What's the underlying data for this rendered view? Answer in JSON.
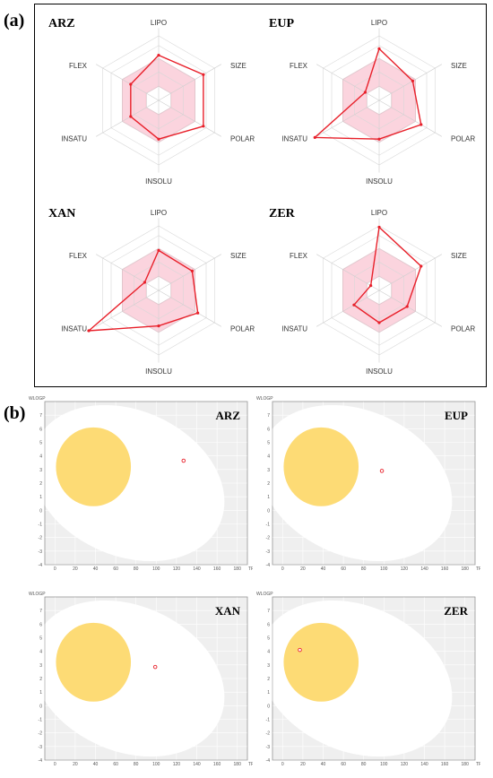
{
  "labels": {
    "a": "(a)",
    "b": "(b)"
  },
  "colors": {
    "radar_line": "#e8202a",
    "radar_fill": "#f9c6d3",
    "bird_egg": "#ffffff",
    "yolk": "#fddb75",
    "plot_bg": "#efefef",
    "grid": "#ffffff"
  },
  "chart_data": [
    {
      "type": "radar",
      "title": "ARZ",
      "axes": [
        "LIPO",
        "SIZE",
        "POLAR",
        "INSOLU",
        "INSATU",
        "FLEX"
      ],
      "values": [
        0.7,
        0.8,
        0.8,
        0.6,
        0.5,
        0.5
      ],
      "range": [
        0,
        1
      ]
    },
    {
      "type": "radar",
      "title": "EUP",
      "axes": [
        "LIPO",
        "SIZE",
        "POLAR",
        "INSOLU",
        "INSATU",
        "FLEX"
      ],
      "values": [
        0.8,
        0.6,
        0.75,
        0.6,
        1.15,
        0.25
      ],
      "range": [
        0,
        1
      ]
    },
    {
      "type": "radar",
      "title": "XAN",
      "axes": [
        "LIPO",
        "SIZE",
        "POLAR",
        "INSOLU",
        "INSATU",
        "FLEX"
      ],
      "values": [
        0.62,
        0.6,
        0.7,
        0.55,
        1.25,
        0.25
      ],
      "range": [
        0,
        1
      ]
    },
    {
      "type": "radar",
      "title": "ZER",
      "axes": [
        "LIPO",
        "SIZE",
        "POLAR",
        "INSOLU",
        "INSATU",
        "FLEX"
      ],
      "values": [
        0.98,
        0.75,
        0.5,
        0.5,
        0.45,
        0.15
      ],
      "range": [
        0,
        1
      ]
    },
    {
      "type": "scatter",
      "title": "ARZ",
      "xlabel": "TPSA",
      "ylabel": "WLOGP",
      "xlim": [
        -10,
        190
      ],
      "ylim": [
        -4,
        8
      ],
      "xticks": [
        0,
        20,
        40,
        60,
        80,
        100,
        120,
        140,
        160,
        180
      ],
      "yticks": [
        -4,
        -3,
        -2,
        -1,
        0,
        1,
        2,
        3,
        4,
        5,
        6,
        7
      ],
      "points": [
        {
          "x": 127,
          "y": 3.65
        }
      ]
    },
    {
      "type": "scatter",
      "title": "EUP",
      "xlabel": "TPSA",
      "ylabel": "WLOGP",
      "xlim": [
        -10,
        190
      ],
      "ylim": [
        -4,
        8
      ],
      "xticks": [
        0,
        20,
        40,
        60,
        80,
        100,
        120,
        140,
        160,
        180
      ],
      "yticks": [
        -4,
        -3,
        -2,
        -1,
        0,
        1,
        2,
        3,
        4,
        5,
        6,
        7
      ],
      "points": [
        {
          "x": 98,
          "y": 2.9
        }
      ]
    },
    {
      "type": "scatter",
      "title": "XAN",
      "xlabel": "TPSA",
      "ylabel": "WLOGP",
      "xlim": [
        -10,
        190
      ],
      "ylim": [
        -4,
        8
      ],
      "xticks": [
        0,
        20,
        40,
        60,
        80,
        100,
        120,
        140,
        160,
        180
      ],
      "yticks": [
        -4,
        -3,
        -2,
        -1,
        0,
        1,
        2,
        3,
        4,
        5,
        6,
        7
      ],
      "points": [
        {
          "x": 99,
          "y": 2.85
        }
      ]
    },
    {
      "type": "scatter",
      "title": "ZER",
      "xlabel": "TPSA",
      "ylabel": "WLOGP",
      "xlim": [
        -10,
        190
      ],
      "ylim": [
        -4,
        8
      ],
      "xticks": [
        0,
        20,
        40,
        60,
        80,
        100,
        120,
        140,
        160,
        180
      ],
      "yticks": [
        -4,
        -3,
        -2,
        -1,
        0,
        1,
        2,
        3,
        4,
        5,
        6,
        7
      ],
      "points": [
        {
          "x": 17,
          "y": 4.1
        }
      ]
    }
  ]
}
